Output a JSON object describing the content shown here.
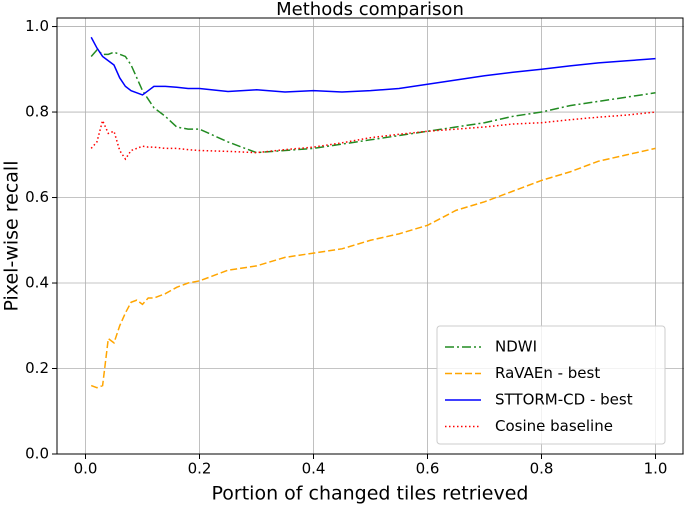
{
  "chart_data": {
    "type": "line",
    "title": "Methods comparison",
    "x_label": "Portion of changed tiles retrieved",
    "y_label": "Pixel-wise recall",
    "x": [
      0.01,
      0.02,
      0.03,
      0.04,
      0.05,
      0.06,
      0.07,
      0.08,
      0.09,
      0.1,
      0.11,
      0.12,
      0.14,
      0.16,
      0.18,
      0.2,
      0.25,
      0.3,
      0.35,
      0.4,
      0.45,
      0.5,
      0.55,
      0.6,
      0.65,
      0.7,
      0.75,
      0.8,
      0.85,
      0.9,
      0.95,
      1.0
    ],
    "series": [
      {
        "name": "NDWI",
        "color": "#228b22",
        "linestyle": "dashdot",
        "values": [
          0.93,
          0.945,
          0.935,
          0.935,
          0.94,
          0.935,
          0.93,
          0.91,
          0.88,
          0.85,
          0.83,
          0.81,
          0.79,
          0.765,
          0.76,
          0.76,
          0.73,
          0.705,
          0.71,
          0.715,
          0.725,
          0.735,
          0.745,
          0.755,
          0.765,
          0.775,
          0.79,
          0.8,
          0.815,
          0.825,
          0.835,
          0.845
        ]
      },
      {
        "name": "RaVAEn - best",
        "color": "#ffa500",
        "linestyle": "dashed",
        "values": [
          0.16,
          0.155,
          0.16,
          0.27,
          0.26,
          0.3,
          0.33,
          0.355,
          0.36,
          0.35,
          0.365,
          0.365,
          0.375,
          0.39,
          0.4,
          0.405,
          0.43,
          0.44,
          0.46,
          0.47,
          0.48,
          0.5,
          0.515,
          0.535,
          0.57,
          0.59,
          0.615,
          0.64,
          0.66,
          0.685,
          0.7,
          0.715
        ]
      },
      {
        "name": "STTORM-CD - best",
        "color": "#0000ff",
        "linestyle": "solid",
        "values": [
          0.975,
          0.95,
          0.93,
          0.92,
          0.91,
          0.88,
          0.86,
          0.85,
          0.845,
          0.84,
          0.85,
          0.86,
          0.86,
          0.858,
          0.855,
          0.855,
          0.848,
          0.852,
          0.847,
          0.85,
          0.847,
          0.85,
          0.855,
          0.865,
          0.875,
          0.885,
          0.893,
          0.9,
          0.908,
          0.915,
          0.92,
          0.925
        ]
      },
      {
        "name": "Cosine baseline",
        "color": "#ff0000",
        "linestyle": "dotted",
        "values": [
          0.715,
          0.73,
          0.78,
          0.75,
          0.755,
          0.71,
          0.69,
          0.71,
          0.715,
          0.72,
          0.718,
          0.718,
          0.715,
          0.715,
          0.712,
          0.71,
          0.708,
          0.705,
          0.712,
          0.718,
          0.728,
          0.74,
          0.748,
          0.755,
          0.76,
          0.765,
          0.772,
          0.775,
          0.782,
          0.788,
          0.793,
          0.8
        ]
      }
    ],
    "xlim": [
      -0.05,
      1.05
    ],
    "ylim": [
      0,
      1.02
    ],
    "xticks": [
      {
        "value": 0,
        "label": "0.0"
      },
      0.2,
      0.4,
      0.6,
      0.8,
      {
        "value": 1,
        "label": "1.0"
      }
    ],
    "yticks": [
      {
        "value": 0,
        "label": "0.0"
      },
      0.2,
      0.4,
      0.6,
      0.8,
      {
        "value": 1,
        "label": "1.0"
      }
    ],
    "grid": true,
    "legend_loc": "lower right"
  }
}
